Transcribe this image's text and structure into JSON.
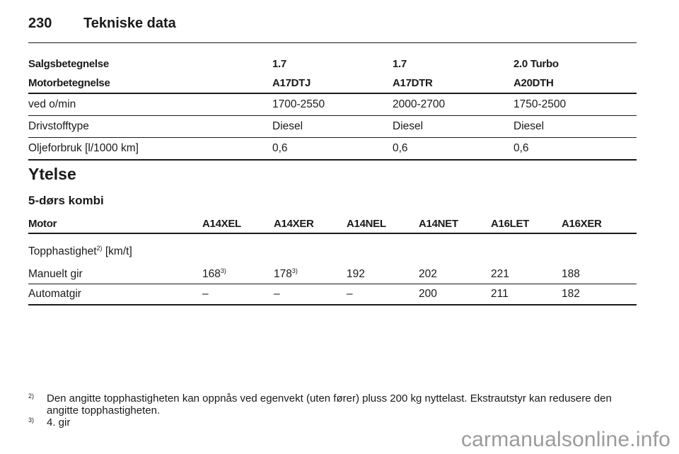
{
  "header": {
    "page_number": "230",
    "title": "Tekniske data"
  },
  "spec_table": {
    "header_row_1": [
      "Salgsbetegnelse",
      "1.7",
      "1.7",
      "2.0 Turbo"
    ],
    "header_row_2": [
      "Motorbetegnelse",
      "A17DTJ",
      "A17DTR",
      "A20DTH"
    ],
    "rows": [
      [
        "ved o/min",
        "1700-2550",
        "2000-2700",
        "1750-2500"
      ],
      [
        "Drivstofftype",
        "Diesel",
        "Diesel",
        "Diesel"
      ],
      [
        "Oljeforbruk [l/1000 km]",
        "0,6",
        "0,6",
        "0,6"
      ]
    ]
  },
  "section": {
    "title": "Ytelse",
    "subtitle": "5-dørs kombi"
  },
  "perf_table": {
    "headers": [
      "Motor",
      "A14XEL",
      "A14XER",
      "A14NEL",
      "A14NET",
      "A16LET",
      "A16XER"
    ],
    "top_speed_label": "Topphastighet",
    "top_speed_ref": "2)",
    "top_speed_unit": "[km/t]",
    "manual": {
      "label": "Manuelt gir",
      "values": [
        "168",
        "178",
        "192",
        "202",
        "221",
        "188"
      ],
      "refs": [
        "3)",
        "3)",
        "",
        "",
        "",
        ""
      ]
    },
    "auto": {
      "label": "Automatgir",
      "values": [
        "–",
        "–",
        "–",
        "200",
        "211",
        "182"
      ]
    }
  },
  "footnotes": [
    {
      "mark": "2)",
      "text": "Den angitte topphastigheten kan oppnås ved egenvekt (uten fører) pluss 200 kg nyttelast. Ekstrautstyr kan redusere den angitte topphastigheten."
    },
    {
      "mark": "3)",
      "text": "4. gir"
    }
  ],
  "watermark": "carmanualsonline.info"
}
